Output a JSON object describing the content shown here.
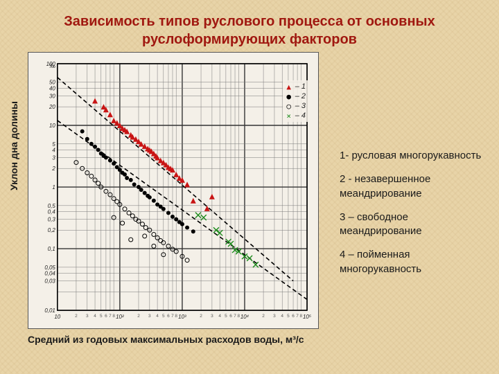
{
  "title_line1": "Зависимость типов руслового процесса от основных",
  "title_line2": "руслоформирующих факторов",
  "ylabel": "Уклон дна долины",
  "xlabel_html": "Средний из годовых максимальных расходов воды, м³/с",
  "legend": {
    "l1": "1- русловая многорукавность",
    "l2": "2 - незавершенное меандрирование",
    "l3": "3 – свободное меандрирование",
    "l4": "4 – пойменная многорукавность"
  },
  "chart": {
    "type": "scatter",
    "background": "#f4f0e8",
    "grid_color": "#333333",
    "grid_minor_color": "#777777",
    "axis_color": "#000000",
    "dashed_lines": [
      {
        "x1": 10,
        "y1": 60,
        "x2": 60000,
        "y2": 0.03
      },
      {
        "x1": 10,
        "y1": 12,
        "x2": 100000,
        "y2": 0.015
      }
    ],
    "dash_color": "#000000",
    "xscale": "log",
    "yscale": "log",
    "xlim": [
      10,
      100000
    ],
    "ylim": [
      0.01,
      100
    ],
    "x_decade_ticks": [
      10,
      100,
      1000,
      10000,
      100000
    ],
    "x_decade_labels": [
      "10",
      "10²",
      "10³",
      "10⁴",
      "10⁵"
    ],
    "x_minor": [
      2,
      3,
      4,
      5,
      6,
      7,
      8
    ],
    "y_ticks": [
      0.01,
      0.02,
      0.03,
      0.04,
      0.05,
      0.1,
      0.2,
      0.3,
      0.4,
      0.5,
      1,
      2,
      3,
      4,
      5,
      10,
      20,
      30,
      40,
      50,
      100
    ],
    "y_labels": [
      "0,01",
      "",
      "0,03",
      "0,04",
      "0,05",
      "0,1",
      "0,2",
      "0,3",
      "0,4",
      "0,5",
      "1",
      "2",
      "3",
      "4",
      "5",
      "10",
      "20",
      "30",
      "40",
      "50",
      "100"
    ],
    "y_unit_label": "‰",
    "series": [
      {
        "name": "1",
        "label": "1",
        "marker": "triangle",
        "color": "#c81414",
        "size": 4,
        "points": [
          [
            40,
            25
          ],
          [
            55,
            20
          ],
          [
            60,
            18
          ],
          [
            70,
            15
          ],
          [
            80,
            12
          ],
          [
            90,
            11
          ],
          [
            100,
            10
          ],
          [
            110,
            9
          ],
          [
            120,
            8.5
          ],
          [
            130,
            8
          ],
          [
            150,
            7
          ],
          [
            160,
            6.5
          ],
          [
            180,
            6
          ],
          [
            200,
            5.5
          ],
          [
            220,
            5
          ],
          [
            250,
            4.6
          ],
          [
            280,
            4.2
          ],
          [
            300,
            4
          ],
          [
            320,
            3.8
          ],
          [
            350,
            3.5
          ],
          [
            380,
            3.2
          ],
          [
            400,
            3
          ],
          [
            450,
            2.7
          ],
          [
            500,
            2.5
          ],
          [
            550,
            2.3
          ],
          [
            600,
            2.1
          ],
          [
            650,
            2
          ],
          [
            700,
            1.9
          ],
          [
            800,
            1.6
          ],
          [
            900,
            1.4
          ],
          [
            1000,
            1.3
          ],
          [
            1200,
            1.1
          ],
          [
            1500,
            0.6
          ],
          [
            2500,
            0.45
          ],
          [
            3000,
            0.7
          ]
        ]
      },
      {
        "name": "2",
        "label": "2",
        "marker": "circle-filled",
        "color": "#000000",
        "size": 3,
        "points": [
          [
            25,
            8
          ],
          [
            30,
            6
          ],
          [
            35,
            5
          ],
          [
            40,
            4.5
          ],
          [
            45,
            4
          ],
          [
            50,
            3.5
          ],
          [
            55,
            3.2
          ],
          [
            60,
            3
          ],
          [
            70,
            2.7
          ],
          [
            80,
            2.4
          ],
          [
            90,
            2.1
          ],
          [
            100,
            1.9
          ],
          [
            110,
            1.7
          ],
          [
            120,
            1.6
          ],
          [
            130,
            1.4
          ],
          [
            150,
            1.3
          ],
          [
            170,
            1.1
          ],
          [
            200,
            1
          ],
          [
            220,
            0.9
          ],
          [
            250,
            0.8
          ],
          [
            280,
            0.72
          ],
          [
            300,
            0.68
          ],
          [
            350,
            0.6
          ],
          [
            400,
            0.52
          ],
          [
            450,
            0.48
          ],
          [
            500,
            0.44
          ],
          [
            600,
            0.38
          ],
          [
            700,
            0.33
          ],
          [
            800,
            0.3
          ],
          [
            900,
            0.27
          ],
          [
            1000,
            0.25
          ],
          [
            1200,
            0.22
          ],
          [
            1500,
            0.19
          ]
        ]
      },
      {
        "name": "3",
        "label": "3",
        "marker": "circle-open",
        "color": "#000000",
        "size": 3,
        "points": [
          [
            20,
            2.5
          ],
          [
            25,
            2
          ],
          [
            30,
            1.7
          ],
          [
            35,
            1.5
          ],
          [
            40,
            1.3
          ],
          [
            45,
            1.15
          ],
          [
            50,
            1
          ],
          [
            60,
            0.85
          ],
          [
            70,
            0.75
          ],
          [
            80,
            0.65
          ],
          [
            90,
            0.58
          ],
          [
            100,
            0.52
          ],
          [
            120,
            0.44
          ],
          [
            140,
            0.38
          ],
          [
            160,
            0.34
          ],
          [
            180,
            0.3
          ],
          [
            200,
            0.28
          ],
          [
            230,
            0.25
          ],
          [
            260,
            0.22
          ],
          [
            300,
            0.2
          ],
          [
            350,
            0.17
          ],
          [
            400,
            0.15
          ],
          [
            450,
            0.135
          ],
          [
            500,
            0.125
          ],
          [
            600,
            0.11
          ],
          [
            700,
            0.098
          ],
          [
            800,
            0.09
          ],
          [
            1000,
            0.075
          ],
          [
            1200,
            0.065
          ],
          [
            150,
            0.14
          ],
          [
            250,
            0.16
          ],
          [
            350,
            0.11
          ],
          [
            500,
            0.08
          ],
          [
            80,
            0.32
          ],
          [
            110,
            0.26
          ]
        ]
      },
      {
        "name": "4",
        "label": "4",
        "marker": "x",
        "color": "#1a8a1a",
        "size": 4,
        "points": [
          [
            1800,
            0.35
          ],
          [
            2200,
            0.32
          ],
          [
            3500,
            0.2
          ],
          [
            4000,
            0.18
          ],
          [
            5500,
            0.13
          ],
          [
            6000,
            0.12
          ],
          [
            7000,
            0.095
          ],
          [
            8000,
            0.09
          ],
          [
            10000,
            0.075
          ],
          [
            12000,
            0.07
          ],
          [
            15000,
            0.055
          ]
        ]
      }
    ],
    "inlegend": [
      {
        "sym": "▲",
        "color": "#c81414",
        "label": "1"
      },
      {
        "sym": "●",
        "color": "#000000",
        "label": "2"
      },
      {
        "sym": "○",
        "color": "#000000",
        "label": "3"
      },
      {
        "sym": "×",
        "color": "#1a8a1a",
        "label": "4"
      }
    ]
  }
}
